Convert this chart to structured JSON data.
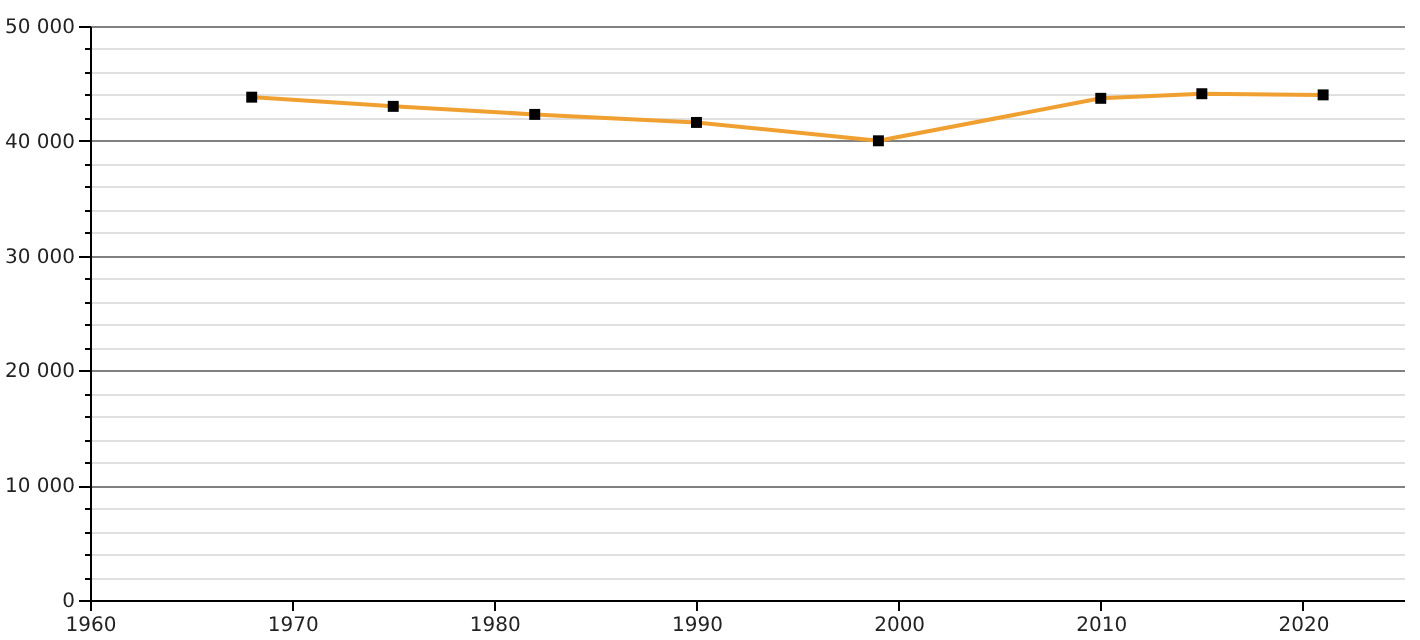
{
  "chart_data": {
    "type": "line",
    "x": [
      1968,
      1975,
      1982,
      1990,
      1999,
      2010,
      2015,
      2021
    ],
    "series": [
      {
        "color": "#f0a030",
        "values": [
          43800,
          43000,
          42300,
          41600,
          40000,
          43700,
          44100,
          44000
        ]
      }
    ],
    "xlim": [
      1960,
      2025
    ],
    "xticks": [
      1960,
      1970,
      1980,
      1990,
      2000,
      2010,
      2020
    ],
    "ylim": [
      0,
      50000
    ],
    "yticks": [
      0,
      {
        "value": 2000,
        "label": null
      },
      {
        "value": 4000,
        "label": null
      },
      {
        "value": 6000,
        "label": null
      },
      {
        "value": 8000,
        "label": null
      },
      {
        "value": 10000,
        "label": "10 000"
      },
      {
        "value": 12000,
        "label": null
      },
      {
        "value": 14000,
        "label": null
      },
      {
        "value": 16000,
        "label": null
      },
      {
        "value": 18000,
        "label": null
      },
      {
        "value": 20000,
        "label": "20 000"
      },
      {
        "value": 22000,
        "label": null
      },
      {
        "value": 24000,
        "label": null
      },
      {
        "value": 26000,
        "label": null
      },
      {
        "value": 28000,
        "label": null
      },
      {
        "value": 30000,
        "label": "30 000"
      },
      {
        "value": 32000,
        "label": null
      },
      {
        "value": 34000,
        "label": null
      },
      {
        "value": 36000,
        "label": null
      },
      {
        "value": 38000,
        "label": null
      },
      {
        "value": 40000,
        "label": "40 000"
      },
      {
        "value": 42000,
        "label": null
      },
      {
        "value": 44000,
        "label": null
      },
      {
        "value": 46000,
        "label": null
      },
      {
        "value": 48000,
        "label": null
      },
      {
        "value": 50000,
        "label": "50 000"
      }
    ],
    "grid": "y",
    "marker": "square",
    "line_style": "solid"
  }
}
